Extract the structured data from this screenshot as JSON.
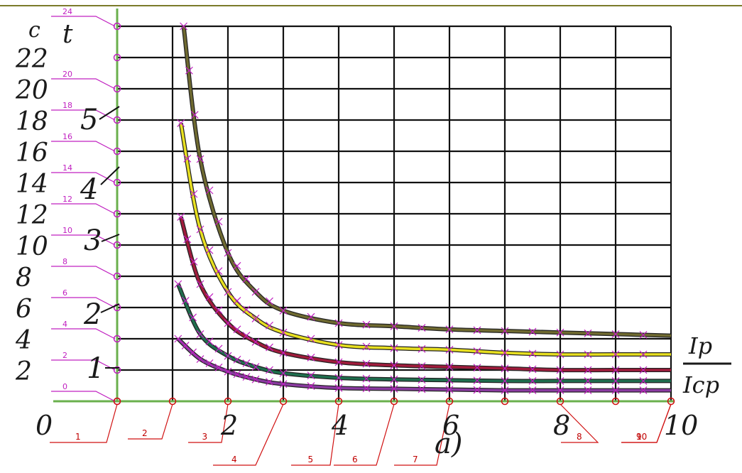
{
  "chart_data": {
    "type": "line",
    "title": "",
    "caption": "a)",
    "ylabel": "t",
    "yunit": "c",
    "xlabel_num": "Ip",
    "xlabel_den": "Icp",
    "xlim": [
      0,
      10
    ],
    "ylim": [
      0,
      24
    ],
    "grid": true,
    "x_ticks": [
      "0",
      "2",
      "4",
      "6",
      "8",
      "10"
    ],
    "y_ticks": [
      "2",
      "4",
      "6",
      "8",
      "10",
      "12",
      "14",
      "16",
      "18",
      "20",
      "22"
    ],
    "y_marker_labels": [
      "0",
      "2",
      "4",
      "6",
      "8",
      "10",
      "12",
      "14",
      "16",
      "18",
      "20",
      "24"
    ],
    "x_marker_labels": [
      "1",
      "2",
      "3",
      "4",
      "5",
      "6",
      "7",
      "8",
      "9",
      "10"
    ],
    "colors": {
      "curve_1": "#8a3aa0",
      "curve_2": "#1f6e4e",
      "curve_3": "#a01c3c",
      "curve_4": "#e8e020",
      "curve_5": "#6f6a30",
      "marker": "#c020c0",
      "axis": "#6ab04c",
      "red_marker": "#d01010"
    },
    "series": [
      {
        "name": "1",
        "x": [
          1.1,
          1.5,
          2,
          2.5,
          3,
          4,
          5,
          6,
          7,
          8,
          9,
          10
        ],
        "y": [
          4.0,
          2.7,
          1.9,
          1.4,
          1.1,
          0.85,
          0.8,
          0.75,
          0.7,
          0.7,
          0.7,
          0.7
        ]
      },
      {
        "name": "2",
        "x": [
          1.1,
          1.5,
          2,
          2.5,
          3,
          4,
          5,
          6,
          7,
          8,
          9,
          10
        ],
        "y": [
          7.5,
          4.3,
          2.9,
          2.2,
          1.8,
          1.5,
          1.4,
          1.35,
          1.3,
          1.3,
          1.3,
          1.3
        ]
      },
      {
        "name": "3",
        "x": [
          1.15,
          1.5,
          2,
          2.5,
          3,
          4,
          5,
          6,
          7,
          8,
          9,
          10
        ],
        "y": [
          11.8,
          7.5,
          5.0,
          3.8,
          3.1,
          2.5,
          2.3,
          2.2,
          2.1,
          2.0,
          2.0,
          2.0
        ]
      },
      {
        "name": "4",
        "x": [
          1.15,
          1.5,
          2,
          2.5,
          3,
          4,
          5,
          6,
          7,
          8,
          9,
          10
        ],
        "y": [
          17.8,
          11.0,
          7.0,
          5.3,
          4.4,
          3.6,
          3.4,
          3.3,
          3.1,
          3.0,
          3.0,
          3.0
        ]
      },
      {
        "name": "5",
        "x": [
          1.2,
          1.5,
          2,
          2.5,
          3,
          4,
          5,
          6,
          7,
          8,
          9,
          10
        ],
        "y": [
          24.0,
          15.5,
          9.5,
          7.0,
          5.8,
          5.0,
          4.8,
          4.6,
          4.5,
          4.4,
          4.3,
          4.2
        ]
      }
    ]
  }
}
